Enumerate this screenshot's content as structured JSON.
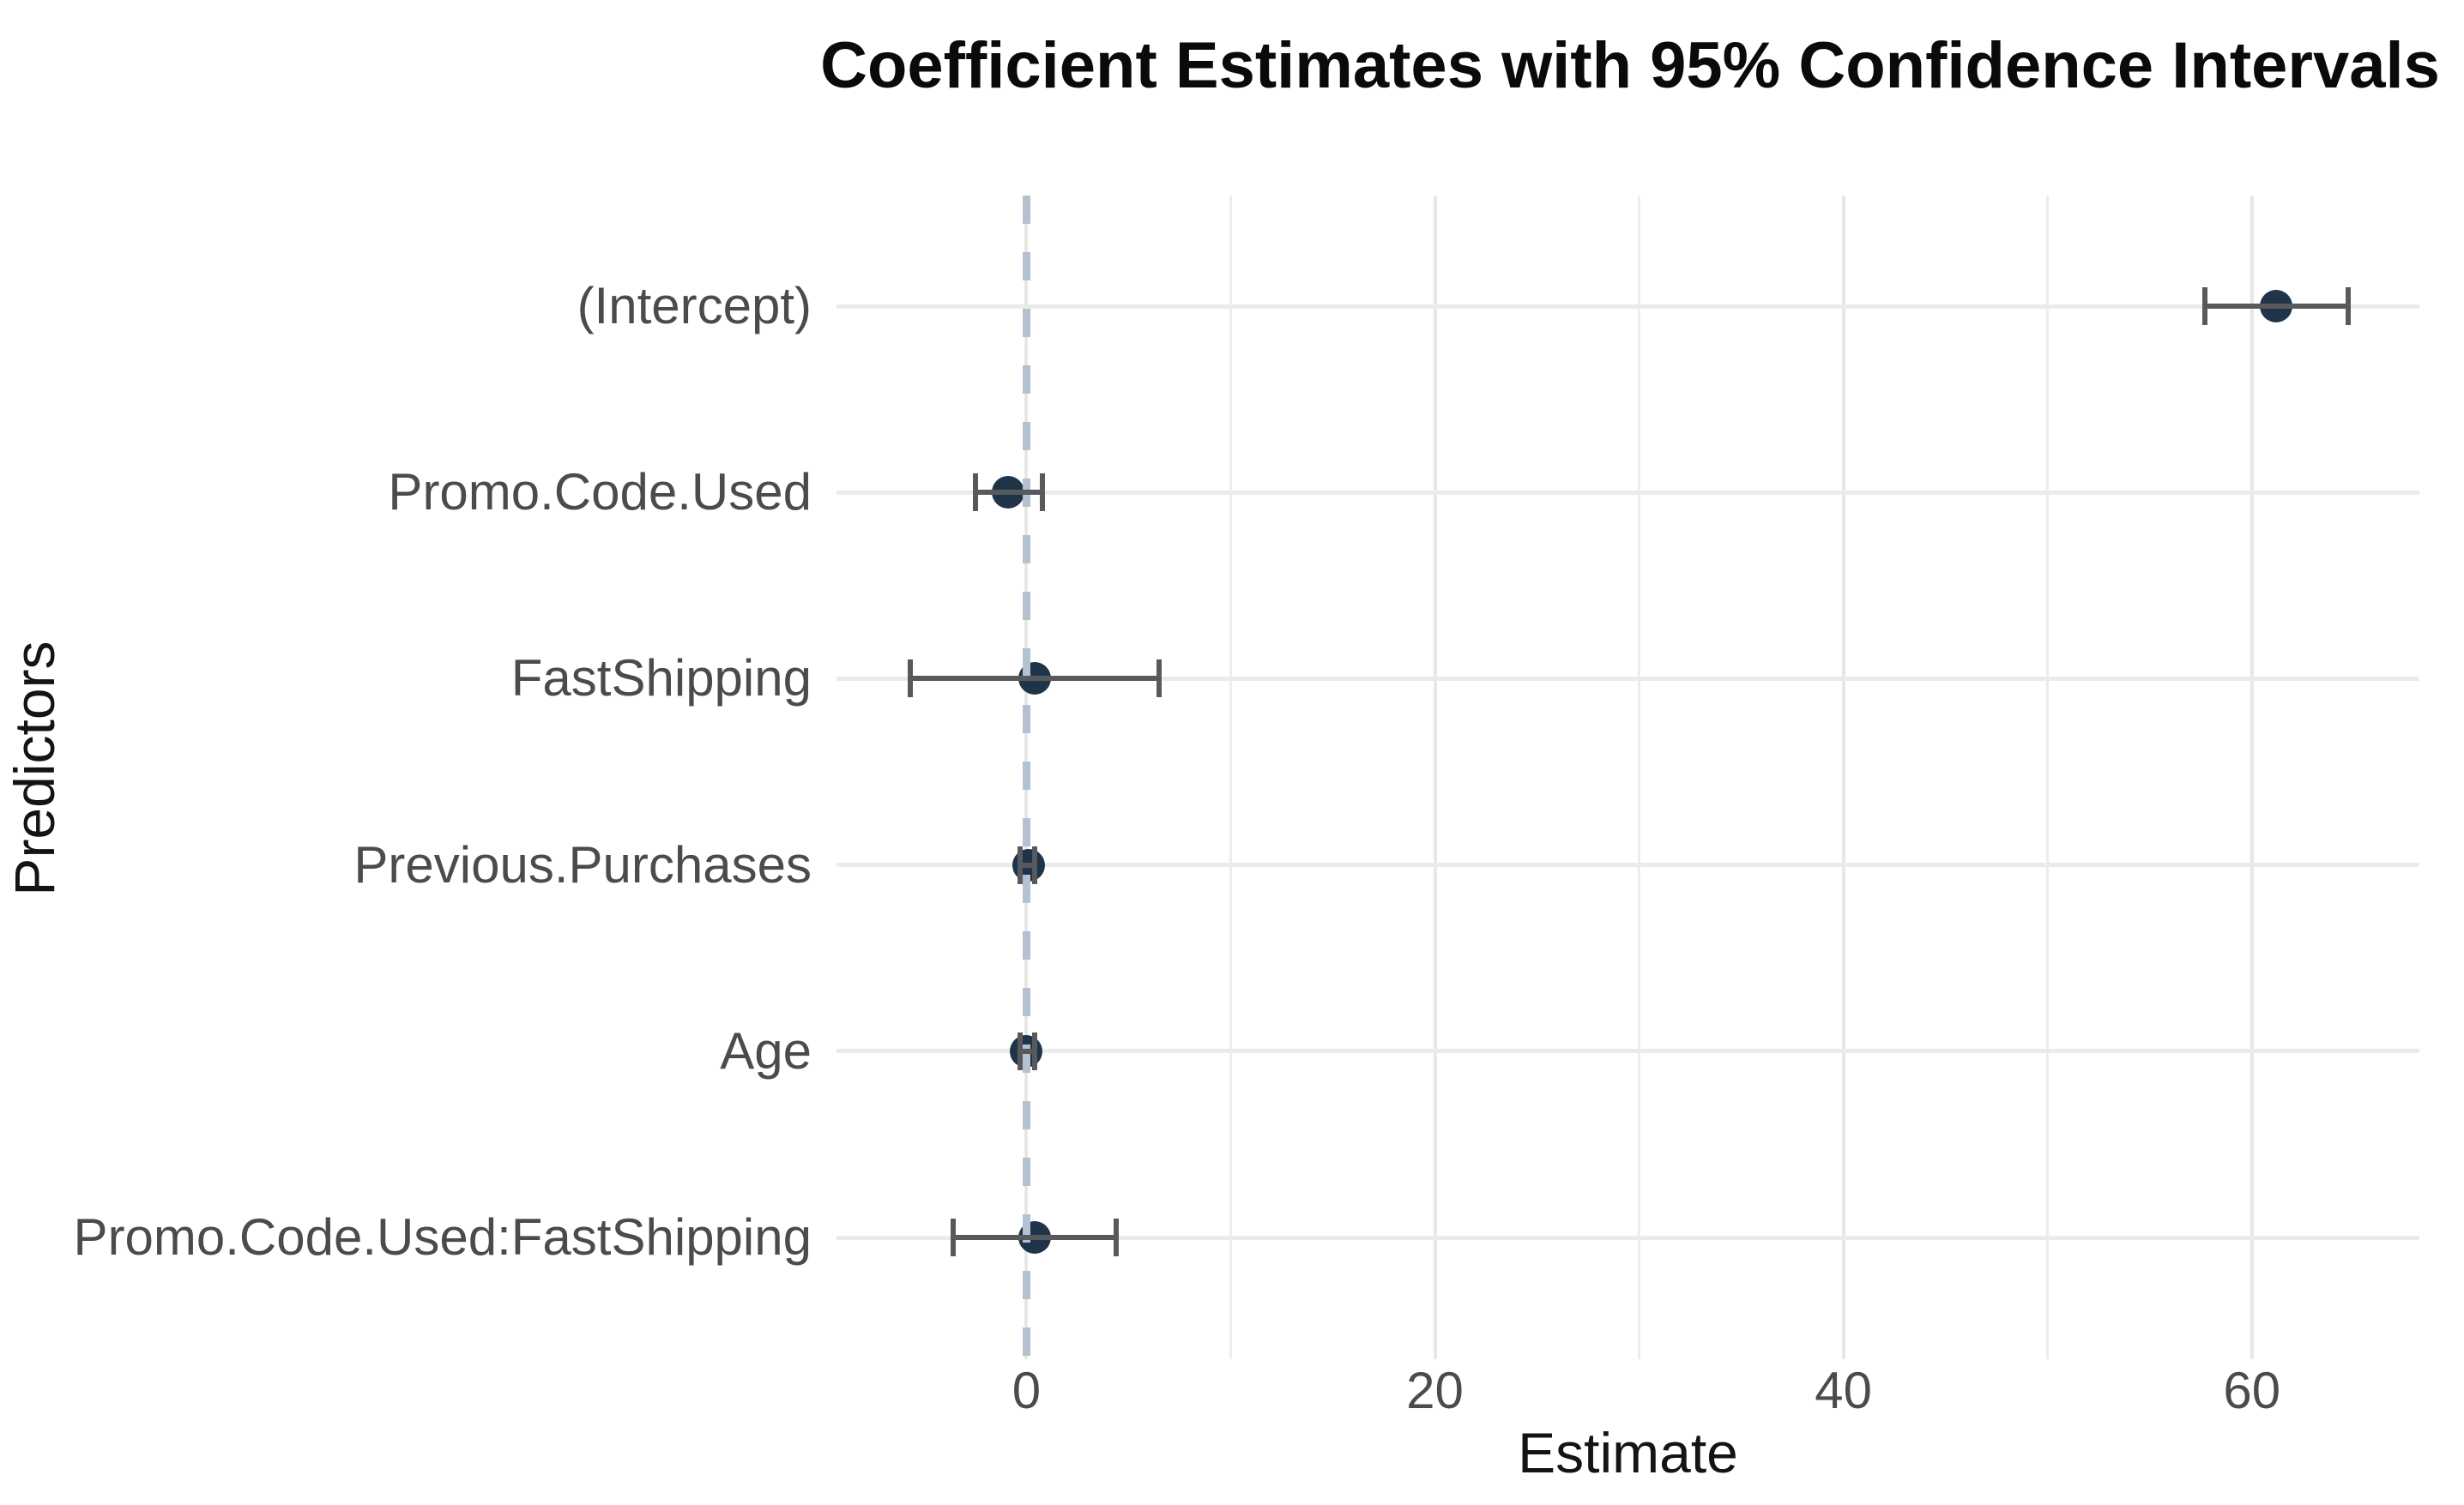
{
  "chart_data": {
    "type": "scatter",
    "subtype": "coefficient-pointrange",
    "title": "Coefficient Estimates with 95% Confidence Intervals",
    "xlabel": "Estimate",
    "ylabel": "Predictors",
    "legend": "none",
    "grid": true,
    "xlim": [
      -9.3,
      68.2
    ],
    "x_major_ticks": [
      0,
      20,
      40,
      60
    ],
    "x_minor_ticks": [
      10,
      30,
      50
    ],
    "reference_line": {
      "x": 0,
      "style": "dashed"
    },
    "points": [
      {
        "label": "(Intercept)",
        "estimate": 61.2,
        "ci_low": 57.7,
        "ci_high": 64.7
      },
      {
        "label": "Promo.Code.Used",
        "estimate": -0.9,
        "ci_low": -2.5,
        "ci_high": 0.8
      },
      {
        "label": "FastShipping",
        "estimate": 0.4,
        "ci_low": -5.7,
        "ci_high": 6.5
      },
      {
        "label": "Previous.Purchases",
        "estimate": 0.1,
        "ci_low": -0.3,
        "ci_high": 0.4
      },
      {
        "label": "Age",
        "estimate": 0.0,
        "ci_low": -0.3,
        "ci_high": 0.4
      },
      {
        "label": "Promo.Code.Used:FastShipping",
        "estimate": 0.4,
        "ci_low": -3.6,
        "ci_high": 4.4
      }
    ],
    "colors": {
      "point": "#1f3449",
      "interval": "#57595c",
      "reference_line": "#b3c1d1",
      "major_gridline": "#e7e7e7",
      "minor_gridline": "#ededed",
      "row_gridline": "#ebebeb",
      "tick_text": "#4b4b4b",
      "axis_title_text": "#141414",
      "title_text": "#0a0a0a",
      "background": "#ffffff"
    }
  }
}
